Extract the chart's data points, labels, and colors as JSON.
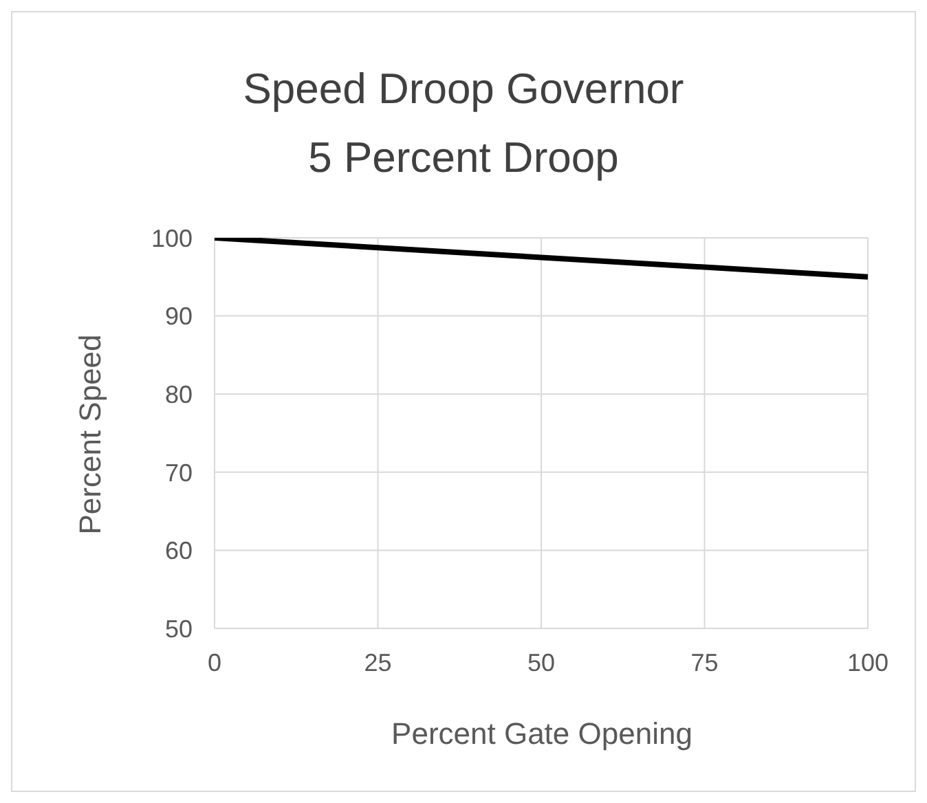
{
  "chart_data": {
    "type": "line",
    "title": "Speed Droop Governor",
    "subtitle": "5 Percent Droop",
    "xlabel": "Percent Gate Opening",
    "ylabel": "Percent Speed",
    "x": [
      0,
      100
    ],
    "series": [
      {
        "color": "#000000",
        "values": [
          100,
          95
        ]
      }
    ],
    "xlim": [
      0,
      100
    ],
    "ylim": [
      50,
      100
    ],
    "xticks": [
      0,
      25,
      50,
      75,
      100
    ],
    "yticks": [
      50,
      60,
      70,
      80,
      90,
      100
    ],
    "grid": true
  }
}
